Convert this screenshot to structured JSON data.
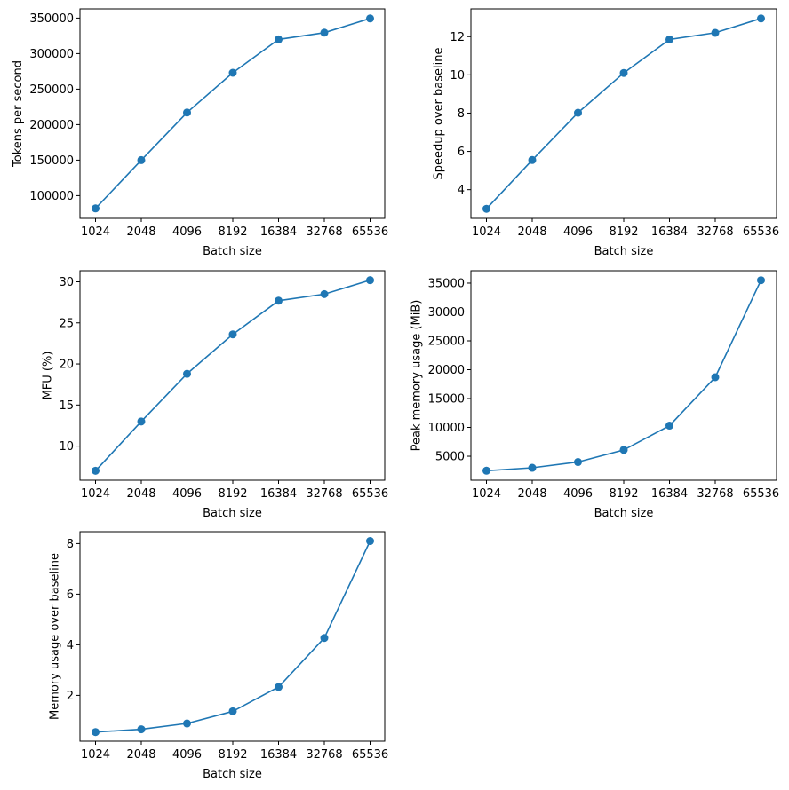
{
  "chart_data": [
    {
      "type": "line",
      "xlabel": "Batch size",
      "ylabel": "Tokens per second",
      "categories": [
        "1024",
        "2048",
        "4096",
        "8192",
        "16384",
        "32768",
        "65536"
      ],
      "values": [
        82000,
        150000,
        217000,
        273000,
        320000,
        329500,
        349500
      ],
      "ylim": [
        68000,
        363000
      ],
      "yticks": [
        100000,
        150000,
        200000,
        250000,
        300000,
        350000
      ],
      "ytick_labels": [
        "100000",
        "150000",
        "200000",
        "250000",
        "300000",
        "350000"
      ],
      "color": "#1f77b4",
      "grid": false
    },
    {
      "type": "line",
      "xlabel": "Batch size",
      "ylabel": "Speedup over baseline",
      "categories": [
        "1024",
        "2048",
        "4096",
        "8192",
        "16384",
        "32768",
        "65536"
      ],
      "values": [
        3.0,
        5.55,
        8.02,
        10.1,
        11.85,
        12.2,
        12.95
      ],
      "ylim": [
        2.5,
        13.45
      ],
      "yticks": [
        4,
        6,
        8,
        10,
        12
      ],
      "ytick_labels": [
        "4",
        "6",
        "8",
        "10",
        "12"
      ],
      "color": "#1f77b4",
      "grid": false
    },
    {
      "type": "line",
      "xlabel": "Batch size",
      "ylabel": "MFU (%)",
      "categories": [
        "1024",
        "2048",
        "4096",
        "8192",
        "16384",
        "32768",
        "65536"
      ],
      "values": [
        7.0,
        13.0,
        18.8,
        23.6,
        27.7,
        28.5,
        30.2
      ],
      "ylim": [
        5.85,
        31.35
      ],
      "yticks": [
        10,
        15,
        20,
        25,
        30
      ],
      "ytick_labels": [
        "10",
        "15",
        "20",
        "25",
        "30"
      ],
      "color": "#1f77b4",
      "grid": false
    },
    {
      "type": "line",
      "xlabel": "Batch size",
      "ylabel": "Peak memory usage (MiB)",
      "categories": [
        "1024",
        "2048",
        "4096",
        "8192",
        "16384",
        "32768",
        "65536"
      ],
      "values": [
        2500,
        3000,
        4000,
        6100,
        10300,
        18700,
        35500
      ],
      "ylim": [
        850,
        37150
      ],
      "yticks": [
        5000,
        10000,
        15000,
        20000,
        25000,
        30000,
        35000
      ],
      "ytick_labels": [
        "5000",
        "10000",
        "15000",
        "20000",
        "25000",
        "30000",
        "35000"
      ],
      "color": "#1f77b4",
      "grid": false
    },
    {
      "type": "line",
      "xlabel": "Batch size",
      "ylabel": "Memory usage over baseline",
      "categories": [
        "1024",
        "2048",
        "4096",
        "8192",
        "16384",
        "32768",
        "65536"
      ],
      "values": [
        0.55,
        0.66,
        0.89,
        1.37,
        2.33,
        4.27,
        8.1
      ],
      "ylim": [
        0.19,
        8.47
      ],
      "yticks": [
        2,
        4,
        6,
        8
      ],
      "ytick_labels": [
        "2",
        "4",
        "6",
        "8"
      ],
      "color": "#1f77b4",
      "grid": false
    }
  ]
}
